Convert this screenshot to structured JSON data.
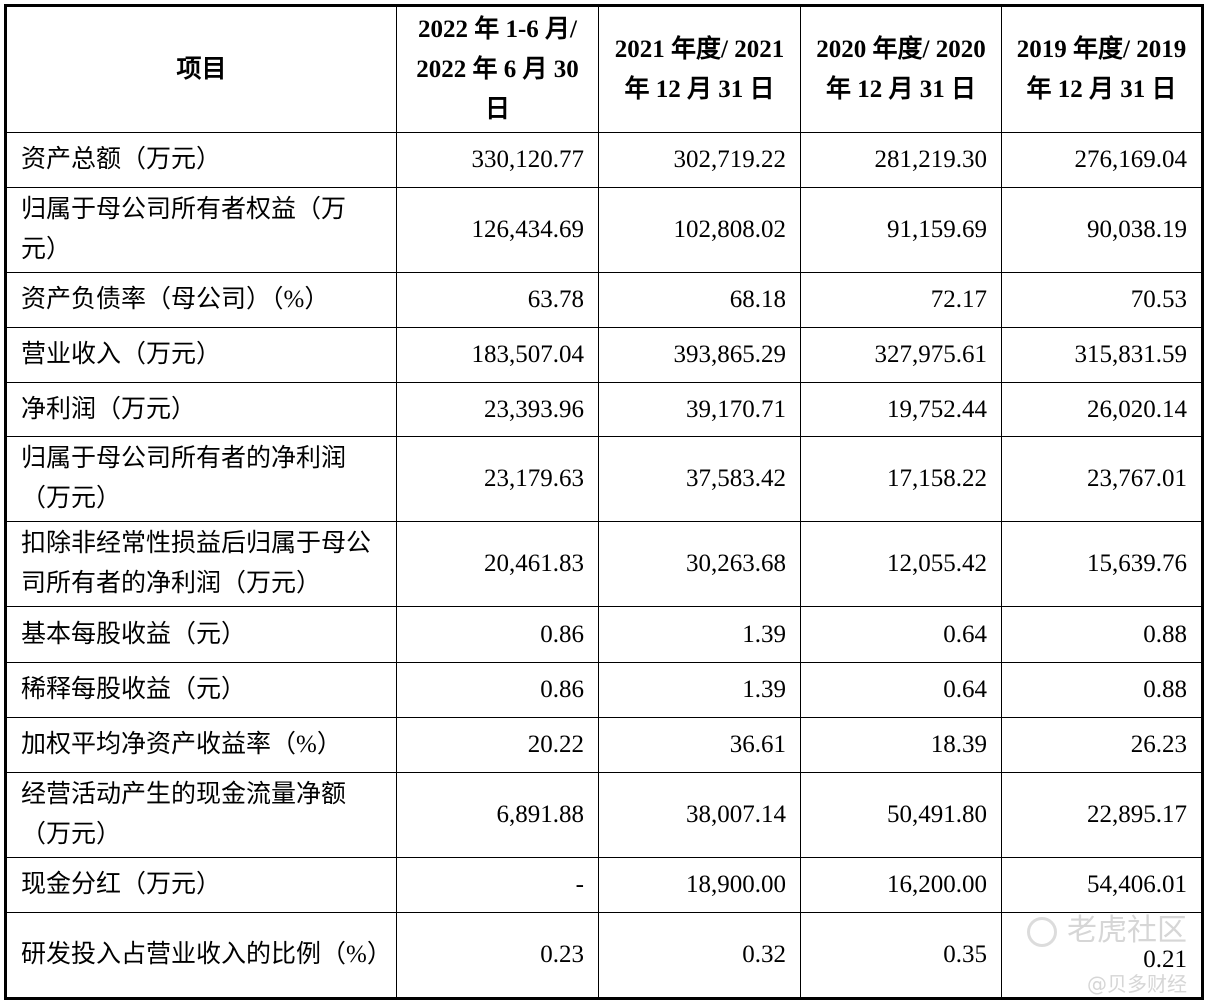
{
  "table": {
    "headers": [
      "项目",
      "2022 年 1-6 月/ 2022 年 6 月 30 日",
      "2021 年度/ 2021 年 12 月 31 日",
      "2020 年度/ 2020 年 12 月 31 日",
      "2019 年度/ 2019 年 12 月 31 日"
    ],
    "rows": [
      {
        "label": "资产总额（万元）",
        "values": [
          "330,120.77",
          "302,719.22",
          "281,219.30",
          "276,169.04"
        ]
      },
      {
        "label": "归属于母公司所有者权益（万元）",
        "values": [
          "126,434.69",
          "102,808.02",
          "91,159.69",
          "90,038.19"
        ]
      },
      {
        "label": "资产负债率（母公司）（%）",
        "values": [
          "63.78",
          "68.18",
          "72.17",
          "70.53"
        ]
      },
      {
        "label": "营业收入（万元）",
        "values": [
          "183,507.04",
          "393,865.29",
          "327,975.61",
          "315,831.59"
        ]
      },
      {
        "label": "净利润（万元）",
        "values": [
          "23,393.96",
          "39,170.71",
          "19,752.44",
          "26,020.14"
        ]
      },
      {
        "label": "归属于母公司所有者的净利润（万元）",
        "values": [
          "23,179.63",
          "37,583.42",
          "17,158.22",
          "23,767.01"
        ]
      },
      {
        "label": "扣除非经常性损益后归属于母公司所有者的净利润（万元）",
        "values": [
          "20,461.83",
          "30,263.68",
          "12,055.42",
          "15,639.76"
        ]
      },
      {
        "label": "基本每股收益（元）",
        "values": [
          "0.86",
          "1.39",
          "0.64",
          "0.88"
        ]
      },
      {
        "label": "稀释每股收益（元）",
        "values": [
          "0.86",
          "1.39",
          "0.64",
          "0.88"
        ]
      },
      {
        "label": "加权平均净资产收益率（%）",
        "values": [
          "20.22",
          "36.61",
          "18.39",
          "26.23"
        ]
      },
      {
        "label": "经营活动产生的现金流量净额（万元）",
        "values": [
          "6,891.88",
          "38,007.14",
          "50,491.80",
          "22,895.17"
        ]
      },
      {
        "label": "现金分红（万元）",
        "values": [
          "-",
          "18,900.00",
          "16,200.00",
          "54,406.01"
        ]
      },
      {
        "label": "研发投入占营业收入的比例（%）",
        "values": [
          "0.23",
          "0.32",
          "0.35",
          "0.21"
        ]
      }
    ]
  },
  "watermark": {
    "brand": "老虎社区",
    "author": "@贝多财经"
  }
}
